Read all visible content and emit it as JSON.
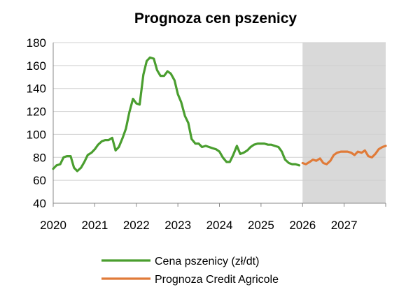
{
  "chart_data": {
    "type": "line",
    "title": "Prognoza cen pszenicy",
    "xlabel": "",
    "ylabel": "",
    "xlim": [
      2020,
      2028
    ],
    "ylim": [
      40,
      180
    ],
    "y_ticks": [
      40,
      60,
      80,
      100,
      120,
      140,
      160,
      180
    ],
    "x_ticks": [
      "2020",
      "2021",
      "2022",
      "2023",
      "2024",
      "2025",
      "2026",
      "2027"
    ],
    "grid": "horizontal",
    "legend": "bottom",
    "shaded_region": {
      "x": [
        2026,
        2028
      ],
      "color": "#d9d9d9"
    },
    "series": [
      {
        "name": "Cena pszenicy (zł/dt)",
        "color": "#4a9e2f",
        "points": [
          [
            2020.0,
            70
          ],
          [
            2020.08,
            73
          ],
          [
            2020.17,
            74
          ],
          [
            2020.25,
            80
          ],
          [
            2020.33,
            81
          ],
          [
            2020.42,
            81
          ],
          [
            2020.5,
            71
          ],
          [
            2020.58,
            68
          ],
          [
            2020.67,
            71
          ],
          [
            2020.75,
            76
          ],
          [
            2020.83,
            82
          ],
          [
            2020.92,
            84
          ],
          [
            2021.0,
            87
          ],
          [
            2021.08,
            91
          ],
          [
            2021.17,
            94
          ],
          [
            2021.25,
            95
          ],
          [
            2021.33,
            95
          ],
          [
            2021.42,
            97
          ],
          [
            2021.5,
            86
          ],
          [
            2021.58,
            89
          ],
          [
            2021.67,
            97
          ],
          [
            2021.75,
            105
          ],
          [
            2021.83,
            119
          ],
          [
            2021.92,
            131
          ],
          [
            2022.0,
            127
          ],
          [
            2022.08,
            126
          ],
          [
            2022.17,
            152
          ],
          [
            2022.25,
            164
          ],
          [
            2022.33,
            167
          ],
          [
            2022.42,
            166
          ],
          [
            2022.5,
            156
          ],
          [
            2022.58,
            151
          ],
          [
            2022.67,
            151
          ],
          [
            2022.75,
            155
          ],
          [
            2022.83,
            153
          ],
          [
            2022.92,
            147
          ],
          [
            2023.0,
            135
          ],
          [
            2023.08,
            128
          ],
          [
            2023.17,
            116
          ],
          [
            2023.25,
            110
          ],
          [
            2023.33,
            96
          ],
          [
            2023.42,
            92
          ],
          [
            2023.5,
            92
          ],
          [
            2023.58,
            89
          ],
          [
            2023.67,
            90
          ],
          [
            2023.75,
            89
          ],
          [
            2023.83,
            88
          ],
          [
            2023.92,
            87
          ],
          [
            2024.0,
            85
          ],
          [
            2024.08,
            80
          ],
          [
            2024.17,
            76
          ],
          [
            2024.25,
            76
          ],
          [
            2024.33,
            82
          ],
          [
            2024.42,
            90
          ],
          [
            2024.5,
            83
          ],
          [
            2024.58,
            84
          ],
          [
            2024.67,
            86
          ],
          [
            2024.75,
            89
          ],
          [
            2024.83,
            91
          ],
          [
            2024.92,
            92
          ],
          [
            2025.0,
            92
          ],
          [
            2025.08,
            92
          ],
          [
            2025.17,
            91
          ],
          [
            2025.25,
            91
          ],
          [
            2025.33,
            90
          ],
          [
            2025.42,
            89
          ],
          [
            2025.5,
            85
          ],
          [
            2025.58,
            78
          ],
          [
            2025.67,
            75
          ],
          [
            2025.75,
            74
          ],
          [
            2025.83,
            74
          ],
          [
            2025.92,
            73
          ]
        ]
      },
      {
        "name": "Prognoza Credit Agricole",
        "color": "#e07b39",
        "points": [
          [
            2026.0,
            75
          ],
          [
            2026.08,
            74
          ],
          [
            2026.17,
            76
          ],
          [
            2026.25,
            78
          ],
          [
            2026.33,
            77
          ],
          [
            2026.42,
            79
          ],
          [
            2026.5,
            75
          ],
          [
            2026.58,
            74
          ],
          [
            2026.67,
            77
          ],
          [
            2026.75,
            82
          ],
          [
            2026.83,
            84
          ],
          [
            2026.92,
            85
          ],
          [
            2027.0,
            85
          ],
          [
            2027.08,
            85
          ],
          [
            2027.17,
            84
          ],
          [
            2027.25,
            82
          ],
          [
            2027.33,
            85
          ],
          [
            2027.42,
            84
          ],
          [
            2027.5,
            86
          ],
          [
            2027.58,
            81
          ],
          [
            2027.67,
            80
          ],
          [
            2027.75,
            83
          ],
          [
            2027.83,
            87
          ],
          [
            2027.92,
            89
          ],
          [
            2028.0,
            90
          ]
        ]
      }
    ]
  }
}
